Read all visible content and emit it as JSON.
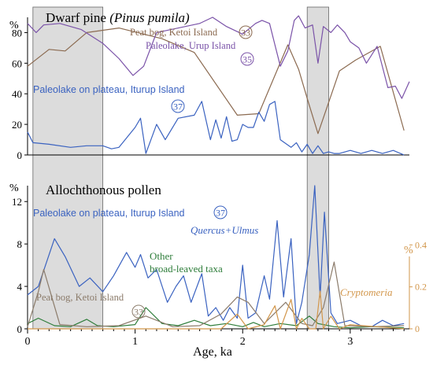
{
  "chart_data": [
    {
      "type": "line",
      "title": "Dwarf pine",
      "title_italic": "(Pinus pumila)",
      "ylabel": "%",
      "xlim": [
        0,
        3.55
      ],
      "ylim": [
        0,
        90
      ],
      "yticks": [
        0,
        20,
        40,
        60,
        80
      ],
      "shaded_intervals": [
        [
          0.05,
          0.7
        ],
        [
          2.6,
          2.8
        ]
      ],
      "grid": false,
      "series": [
        {
          "name": "Peat bog, Ketoi Island",
          "badge": "33",
          "color": "#8B6A50",
          "points": [
            [
              0.0,
              58
            ],
            [
              0.2,
              69
            ],
            [
              0.35,
              68
            ],
            [
              0.55,
              80
            ],
            [
              0.85,
              83
            ],
            [
              1.25,
              76
            ],
            [
              1.55,
              67
            ],
            [
              1.95,
              26
            ],
            [
              2.15,
              27
            ],
            [
              2.42,
              72
            ],
            [
              2.52,
              56
            ],
            [
              2.6,
              37
            ],
            [
              2.7,
              14
            ],
            [
              2.9,
              55
            ],
            [
              3.05,
              62
            ],
            [
              3.28,
              71
            ],
            [
              3.5,
              16
            ]
          ]
        },
        {
          "name": "Paleolake, Urup Island",
          "badge": "35",
          "color": "#7A52A8",
          "points": [
            [
              0.0,
              86
            ],
            [
              0.08,
              80
            ],
            [
              0.15,
              85
            ],
            [
              0.3,
              86
            ],
            [
              0.5,
              82
            ],
            [
              0.7,
              73
            ],
            [
              0.85,
              63
            ],
            [
              0.98,
              52
            ],
            [
              1.08,
              58
            ],
            [
              1.2,
              80
            ],
            [
              1.6,
              86
            ],
            [
              1.72,
              90
            ],
            [
              1.85,
              84
            ],
            [
              2.0,
              79
            ],
            [
              2.12,
              86
            ],
            [
              2.18,
              88
            ],
            [
              2.25,
              86
            ],
            [
              2.3,
              72
            ],
            [
              2.35,
              58
            ],
            [
              2.42,
              68
            ],
            [
              2.48,
              88
            ],
            [
              2.52,
              91
            ],
            [
              2.58,
              83
            ],
            [
              2.65,
              85
            ],
            [
              2.7,
              60
            ],
            [
              2.75,
              84
            ],
            [
              2.82,
              80
            ],
            [
              2.88,
              85
            ],
            [
              2.95,
              80
            ],
            [
              3.0,
              74
            ],
            [
              3.08,
              70
            ],
            [
              3.15,
              60
            ],
            [
              3.25,
              71
            ],
            [
              3.35,
              44
            ],
            [
              3.42,
              45
            ],
            [
              3.48,
              37
            ],
            [
              3.55,
              48
            ]
          ]
        },
        {
          "name": "Paleolake on plateau, Iturup Island",
          "badge": "37",
          "color": "#3A62C0",
          "points": [
            [
              0.0,
              15
            ],
            [
              0.05,
              8
            ],
            [
              0.2,
              7
            ],
            [
              0.4,
              5
            ],
            [
              0.55,
              6
            ],
            [
              0.7,
              6
            ],
            [
              0.78,
              4
            ],
            [
              0.85,
              5
            ],
            [
              1.0,
              18
            ],
            [
              1.05,
              24
            ],
            [
              1.1,
              1
            ],
            [
              1.2,
              20
            ],
            [
              1.28,
              10
            ],
            [
              1.4,
              24
            ],
            [
              1.55,
              26
            ],
            [
              1.62,
              35
            ],
            [
              1.7,
              10
            ],
            [
              1.75,
              23
            ],
            [
              1.8,
              11
            ],
            [
              1.85,
              25
            ],
            [
              1.9,
              9
            ],
            [
              1.95,
              10
            ],
            [
              2.0,
              20
            ],
            [
              2.05,
              18
            ],
            [
              2.1,
              18
            ],
            [
              2.15,
              28
            ],
            [
              2.2,
              22
            ],
            [
              2.25,
              33
            ],
            [
              2.3,
              35
            ],
            [
              2.35,
              10
            ],
            [
              2.45,
              5
            ],
            [
              2.5,
              8
            ],
            [
              2.55,
              2
            ],
            [
              2.6,
              7
            ],
            [
              2.65,
              1
            ],
            [
              2.7,
              6
            ],
            [
              2.75,
              1
            ],
            [
              2.8,
              2
            ],
            [
              2.85,
              1
            ],
            [
              2.9,
              1
            ],
            [
              3.0,
              3
            ],
            [
              3.1,
              1
            ],
            [
              3.2,
              3
            ],
            [
              3.3,
              1
            ],
            [
              3.4,
              3
            ],
            [
              3.5,
              0
            ]
          ]
        }
      ]
    },
    {
      "type": "line",
      "title": "Allochthonous pollen",
      "xlabel": "Age, ka",
      "ylabel": "%",
      "xlim": [
        0,
        3.55
      ],
      "xticks": [
        0,
        1,
        2,
        3
      ],
      "ylim": [
        0,
        13.5
      ],
      "yticks": [
        0,
        4,
        8,
        12
      ],
      "y2label": "%",
      "y2lim": [
        0,
        0.45
      ],
      "y2ticks": [
        0,
        0.2,
        0.4
      ],
      "shaded_intervals": [
        [
          0.05,
          0.7
        ],
        [
          2.6,
          2.8
        ]
      ],
      "grid": false,
      "series": [
        {
          "name": "Paleolake on plateau, Iturup Island",
          "badge": "37",
          "color": "#3A62C0",
          "axis": "left",
          "points": [
            [
              0.0,
              3.2
            ],
            [
              0.1,
              4.0
            ],
            [
              0.25,
              8.5
            ],
            [
              0.35,
              6.8
            ],
            [
              0.48,
              4.0
            ],
            [
              0.58,
              4.8
            ],
            [
              0.7,
              3.5
            ],
            [
              0.8,
              5.0
            ],
            [
              0.92,
              7.2
            ],
            [
              1.0,
              5.8
            ],
            [
              1.05,
              7.0
            ],
            [
              1.12,
              4.8
            ],
            [
              1.2,
              5.6
            ],
            [
              1.3,
              2.5
            ],
            [
              1.38,
              4.0
            ],
            [
              1.45,
              5.0
            ],
            [
              1.52,
              2.5
            ],
            [
              1.62,
              5.2
            ],
            [
              1.68,
              1.2
            ],
            [
              1.75,
              2.0
            ],
            [
              1.82,
              0.8
            ],
            [
              1.88,
              2.0
            ],
            [
              1.95,
              1.0
            ],
            [
              2.0,
              6.0
            ],
            [
              2.05,
              1.0
            ],
            [
              2.12,
              1.5
            ],
            [
              2.2,
              5.0
            ],
            [
              2.25,
              2.8
            ],
            [
              2.32,
              10.2
            ],
            [
              2.38,
              3.0
            ],
            [
              2.45,
              8.5
            ],
            [
              2.5,
              0.5
            ],
            [
              2.55,
              2.5
            ],
            [
              2.62,
              7.0
            ],
            [
              2.67,
              13.5
            ],
            [
              2.72,
              3.0
            ],
            [
              2.76,
              11.0
            ],
            [
              2.82,
              1.5
            ],
            [
              2.88,
              0.5
            ],
            [
              3.0,
              0.8
            ],
            [
              3.1,
              0.3
            ],
            [
              3.2,
              0.2
            ],
            [
              3.3,
              0.8
            ],
            [
              3.4,
              0.3
            ],
            [
              3.5,
              0.5
            ]
          ]
        },
        {
          "name": "Other broad-leaved taxa",
          "color": "#2E7D3A",
          "axis": "left",
          "points": [
            [
              0.0,
              0.5
            ],
            [
              0.1,
              1.0
            ],
            [
              0.25,
              0.3
            ],
            [
              0.4,
              0.2
            ],
            [
              0.55,
              0.9
            ],
            [
              0.65,
              0.3
            ],
            [
              0.8,
              0.2
            ],
            [
              1.0,
              0.4
            ],
            [
              1.1,
              2.0
            ],
            [
              1.25,
              0.5
            ],
            [
              1.4,
              0.3
            ],
            [
              1.55,
              0.8
            ],
            [
              1.7,
              0.3
            ],
            [
              1.85,
              0.5
            ],
            [
              2.0,
              0.2
            ],
            [
              2.1,
              0.6
            ],
            [
              2.2,
              0.2
            ],
            [
              2.35,
              0.5
            ],
            [
              2.5,
              0.3
            ],
            [
              2.62,
              1.2
            ],
            [
              2.7,
              0.5
            ],
            [
              2.85,
              0.2
            ],
            [
              3.0,
              0.1
            ],
            [
              3.2,
              0.2
            ],
            [
              3.5,
              0.1
            ]
          ]
        },
        {
          "name": "Peat bog, Ketoi Island",
          "badge": "33",
          "color": "#8B7B6A",
          "axis": "left",
          "points": [
            [
              0.0,
              0.2
            ],
            [
              0.1,
              3.5
            ],
            [
              0.15,
              5.6
            ],
            [
              0.3,
              0.4
            ],
            [
              0.55,
              0.2
            ],
            [
              0.85,
              0.3
            ],
            [
              1.1,
              1.2
            ],
            [
              1.35,
              0.2
            ],
            [
              1.6,
              0.3
            ],
            [
              1.8,
              1.4
            ],
            [
              1.95,
              3.0
            ],
            [
              2.05,
              2.5
            ],
            [
              2.2,
              0.5
            ],
            [
              2.4,
              2.5
            ],
            [
              2.55,
              0.5
            ],
            [
              2.65,
              0.3
            ],
            [
              2.75,
              2.0
            ],
            [
              2.85,
              6.3
            ],
            [
              2.95,
              0.3
            ],
            [
              3.2,
              0.2
            ],
            [
              3.5,
              0.3
            ]
          ]
        },
        {
          "name": "Cryptomeria",
          "color": "#D2964A",
          "axis": "right",
          "points": [
            [
              0.0,
              0.0
            ],
            [
              1.2,
              0.0
            ],
            [
              1.8,
              0.0
            ],
            [
              1.95,
              0.07
            ],
            [
              2.05,
              0.0
            ],
            [
              2.2,
              0.02
            ],
            [
              2.3,
              0.11
            ],
            [
              2.35,
              0.0
            ],
            [
              2.45,
              0.14
            ],
            [
              2.5,
              0.0
            ],
            [
              2.55,
              0.05
            ],
            [
              2.62,
              0.0
            ],
            [
              2.68,
              0.0
            ],
            [
              2.72,
              0.18
            ],
            [
              2.75,
              0.0
            ],
            [
              2.82,
              0.06
            ],
            [
              2.9,
              0.0
            ],
            [
              3.0,
              0.02
            ],
            [
              3.5,
              0.0
            ]
          ]
        }
      ],
      "annotations": [
        {
          "text": "Quercus+Ulmus",
          "italic": true,
          "color": "#3A62C0"
        },
        {
          "text": "Other",
          "color": "#2E7D3A"
        },
        {
          "text": "broad-leaved taxa",
          "color": "#2E7D3A"
        },
        {
          "text": "Cryptomeria",
          "italic": true,
          "color": "#D2964A"
        }
      ]
    }
  ],
  "colors": {
    "shade": "#DCDCDC",
    "axis": "#000000"
  }
}
